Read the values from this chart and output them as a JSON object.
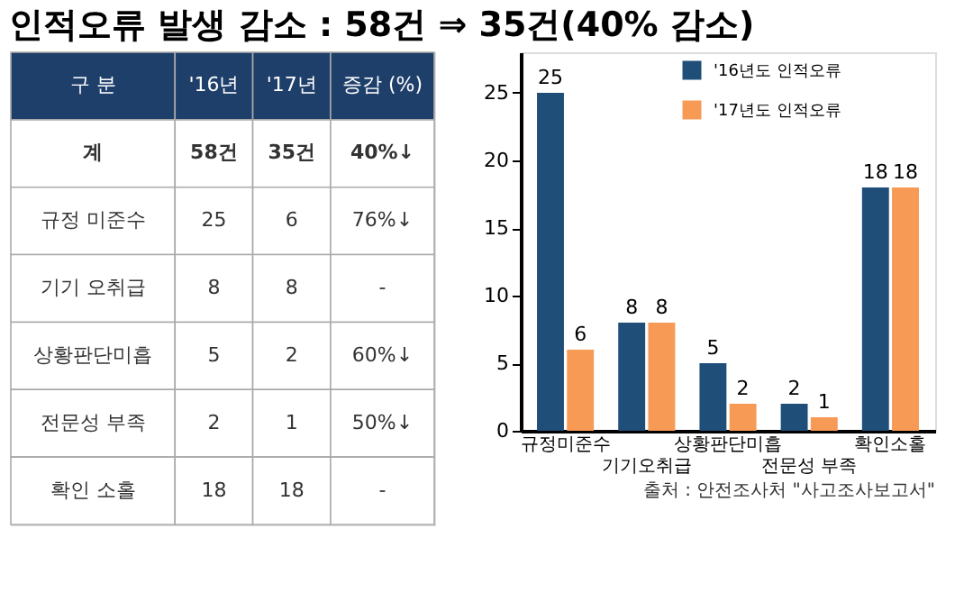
{
  "chart_data": [
    {
      "type": "other",
      "title": "인적오류 발생 감소 : 58건 ⇒ 35건(40% 감소)",
      "annotations": [
        "구 분",
        "'16년",
        "'17년",
        "증감 (%)",
        "계",
        "58건",
        "35건",
        "40%↓",
        "규정 미준수",
        "25",
        "6",
        "76%↓",
        "기기 오취급",
        "8",
        "8",
        "-",
        "상황판단미흡",
        "5",
        "2",
        "60%↓",
        "전문성 부족",
        "2",
        "1",
        "50%↓",
        "확인 소홀",
        "18",
        "18",
        "-"
      ]
    },
    {
      "type": "bar",
      "categories": [
        "규정미준수",
        "기기오취급",
        "상황판단미흡",
        "전문성 부족",
        "확인소홀"
      ],
      "series": [
        {
          "name": "'16년도 인적오류",
          "color": "#1f4e79",
          "values": [
            25,
            8,
            5,
            2,
            18
          ]
        },
        {
          "name": "'17년도 인적오류",
          "color": "#f79a55",
          "values": [
            6,
            8,
            2,
            1,
            18
          ]
        }
      ],
      "ylim": [
        0,
        28
      ],
      "yticks": [
        0,
        5,
        10,
        15,
        20,
        25
      ],
      "data_labels": true,
      "legend": "top",
      "grid": false,
      "annotations": [
        "출처 : 안전조사처 \"사고조사보고서\""
      ]
    }
  ]
}
